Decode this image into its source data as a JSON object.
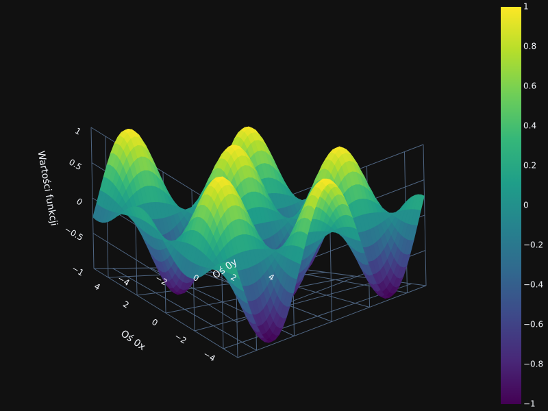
{
  "title": "",
  "colors": {
    "background": "#111111",
    "grid": "#506784",
    "text": "#f2f5fa",
    "colorscale": "Viridis"
  },
  "chart_data": {
    "type": "surface",
    "function": "sin(x)*cos(y)",
    "x_range": [
      -5,
      5
    ],
    "y_range": [
      -5,
      5
    ],
    "z_range": [
      -1,
      1
    ],
    "x": {
      "label": "Oś 0x",
      "ticks": [
        4,
        2,
        0,
        -2,
        -4
      ],
      "tick_labels": [
        "4",
        "2",
        "0",
        "−2",
        "−4"
      ]
    },
    "y": {
      "label": "Oś 0y",
      "ticks": [
        -4,
        -2,
        0,
        2,
        4
      ],
      "tick_labels": [
        "−4",
        "−2",
        "0",
        "2",
        "4"
      ]
    },
    "z": {
      "label": "Wartości funkcji",
      "ticks": [
        1,
        0.5,
        0,
        -0.5,
        -1
      ],
      "tick_labels": [
        "1",
        "0.5",
        "0",
        "−0.5",
        "−1"
      ]
    },
    "colorbar": {
      "ticks": [
        1,
        0.8,
        0.6,
        0.4,
        0.2,
        0,
        -0.2,
        -0.4,
        -0.6,
        -0.8,
        -1
      ],
      "tick_labels": [
        "1",
        "0.8",
        "0.6",
        "0.4",
        "0.2",
        "0",
        "−0.2",
        "−0.4",
        "−0.6",
        "−0.8",
        "−1"
      ]
    },
    "grid": true
  }
}
